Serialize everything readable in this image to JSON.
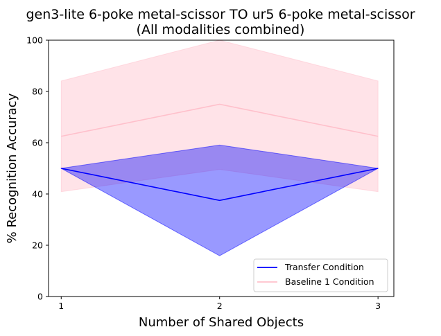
{
  "chart_data": {
    "type": "line",
    "title_line1": "gen3-lite 6-poke metal-scissor TO ur5 6-poke metal-scissor",
    "title_line2": "(All modalities combined)",
    "xlabel": "Number of Shared Objects",
    "ylabel": "% Recognition Accuracy",
    "xlim": [
      0.92,
      3.1
    ],
    "ylim": [
      0,
      100
    ],
    "x": [
      1,
      2,
      3
    ],
    "x_ticks": [
      1,
      2,
      3
    ],
    "y_ticks": [
      0,
      20,
      40,
      60,
      80,
      100
    ],
    "grid": false,
    "legend_position": "lower-right",
    "series": [
      {
        "name": "Transfer Condition",
        "values": [
          50,
          37.5,
          50
        ],
        "band_lower": [
          50,
          15.9,
          50
        ],
        "band_upper": [
          50,
          59.1,
          50
        ],
        "color": "#0000ff",
        "band_color": "#0000ff",
        "band_opacity": 0.4
      },
      {
        "name": "Baseline 1 Condition",
        "values": [
          62.5,
          75,
          62.5
        ],
        "band_lower": [
          40.9,
          49.6,
          40.9
        ],
        "band_upper": [
          84.1,
          100,
          84.1
        ],
        "color": "#ffc0cb",
        "band_color": "#ffc0cb",
        "band_opacity": 0.45
      }
    ]
  }
}
